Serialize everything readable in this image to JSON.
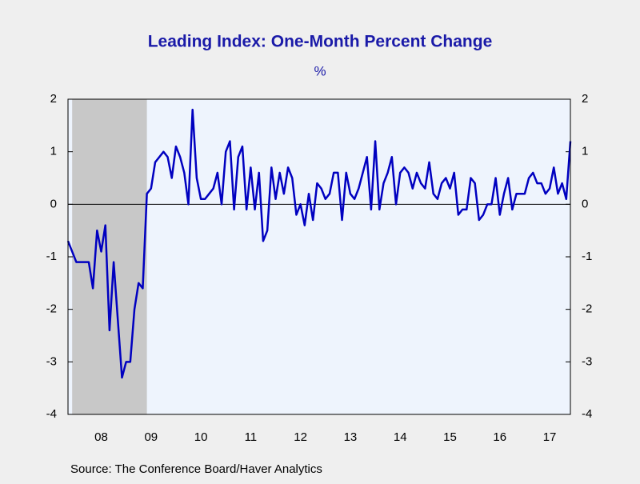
{
  "chart_data": {
    "type": "line",
    "title": "Leading Index: One-Month Percent Change",
    "y_label": "%",
    "source": "Source:  The Conference Board/Haver Analytics",
    "categories": [
      null,
      null,
      null,
      null,
      null,
      null,
      null,
      null,
      "08",
      null,
      null,
      null,
      null,
      null,
      null,
      null,
      null,
      null,
      null,
      null,
      "09",
      null,
      null,
      null,
      null,
      null,
      null,
      null,
      null,
      null,
      null,
      null,
      "10",
      null,
      null,
      null,
      null,
      null,
      null,
      null,
      null,
      null,
      null,
      null,
      "11",
      null,
      null,
      null,
      null,
      null,
      null,
      null,
      null,
      null,
      null,
      null,
      "12",
      null,
      null,
      null,
      null,
      null,
      null,
      null,
      null,
      null,
      null,
      null,
      "13",
      null,
      null,
      null,
      null,
      null,
      null,
      null,
      null,
      null,
      null,
      null,
      "14",
      null,
      null,
      null,
      null,
      null,
      null,
      null,
      null,
      null,
      null,
      null,
      "15",
      null,
      null,
      null,
      null,
      null,
      null,
      null,
      null,
      null,
      null,
      null,
      "16",
      null,
      null,
      null,
      null,
      null,
      null,
      null,
      null,
      null,
      null,
      null,
      "17",
      null,
      null,
      null,
      null,
      null
    ],
    "series": [
      {
        "name": "Leading Index",
        "color": "#0000c0",
        "values": [
          -0.7,
          -0.9,
          -1.1,
          -1.1,
          -1.1,
          -1.1,
          -1.6,
          -0.5,
          -0.9,
          -0.4,
          -2.4,
          -1.1,
          -2.2,
          -3.3,
          -3.0,
          -3.0,
          -2.0,
          -1.5,
          -1.6,
          0.2,
          0.3,
          0.8,
          0.9,
          1.0,
          0.9,
          0.5,
          1.1,
          0.9,
          0.6,
          0.0,
          1.8,
          0.5,
          0.1,
          0.1,
          0.2,
          0.3,
          0.6,
          0.0,
          1.0,
          1.2,
          -0.1,
          0.9,
          1.1,
          -0.1,
          0.7,
          -0.1,
          0.6,
          -0.7,
          -0.5,
          0.7,
          0.1,
          0.6,
          0.2,
          0.7,
          0.5,
          -0.2,
          0.0,
          -0.4,
          0.2,
          -0.3,
          0.4,
          0.3,
          0.1,
          0.2,
          0.6,
          0.6,
          -0.3,
          0.6,
          0.2,
          0.1,
          0.3,
          0.6,
          0.9,
          -0.1,
          1.2,
          -0.1,
          0.4,
          0.6,
          0.9,
          0.0,
          0.6,
          0.7,
          0.6,
          0.3,
          0.6,
          0.4,
          0.3,
          0.8,
          0.2,
          0.1,
          0.4,
          0.5,
          0.3,
          0.6,
          -0.2,
          -0.1,
          -0.1,
          0.5,
          0.4,
          -0.3,
          -0.2,
          0.0,
          0.0,
          0.5,
          -0.2,
          0.2,
          0.5,
          -0.1,
          0.2,
          0.2,
          0.2,
          0.5,
          0.6,
          0.4,
          0.4,
          0.2,
          0.3,
          0.7,
          0.2,
          0.4,
          0.1,
          1.2
        ]
      }
    ],
    "ylim": [
      -4,
      2
    ],
    "yticks": [
      -4,
      -3,
      -2,
      -1,
      0,
      1,
      2
    ],
    "shaded_ranges": [
      [
        1,
        19
      ]
    ],
    "shade_color": "#c8c8c8",
    "plot_color": "#eef4fd",
    "zero_line": true
  }
}
